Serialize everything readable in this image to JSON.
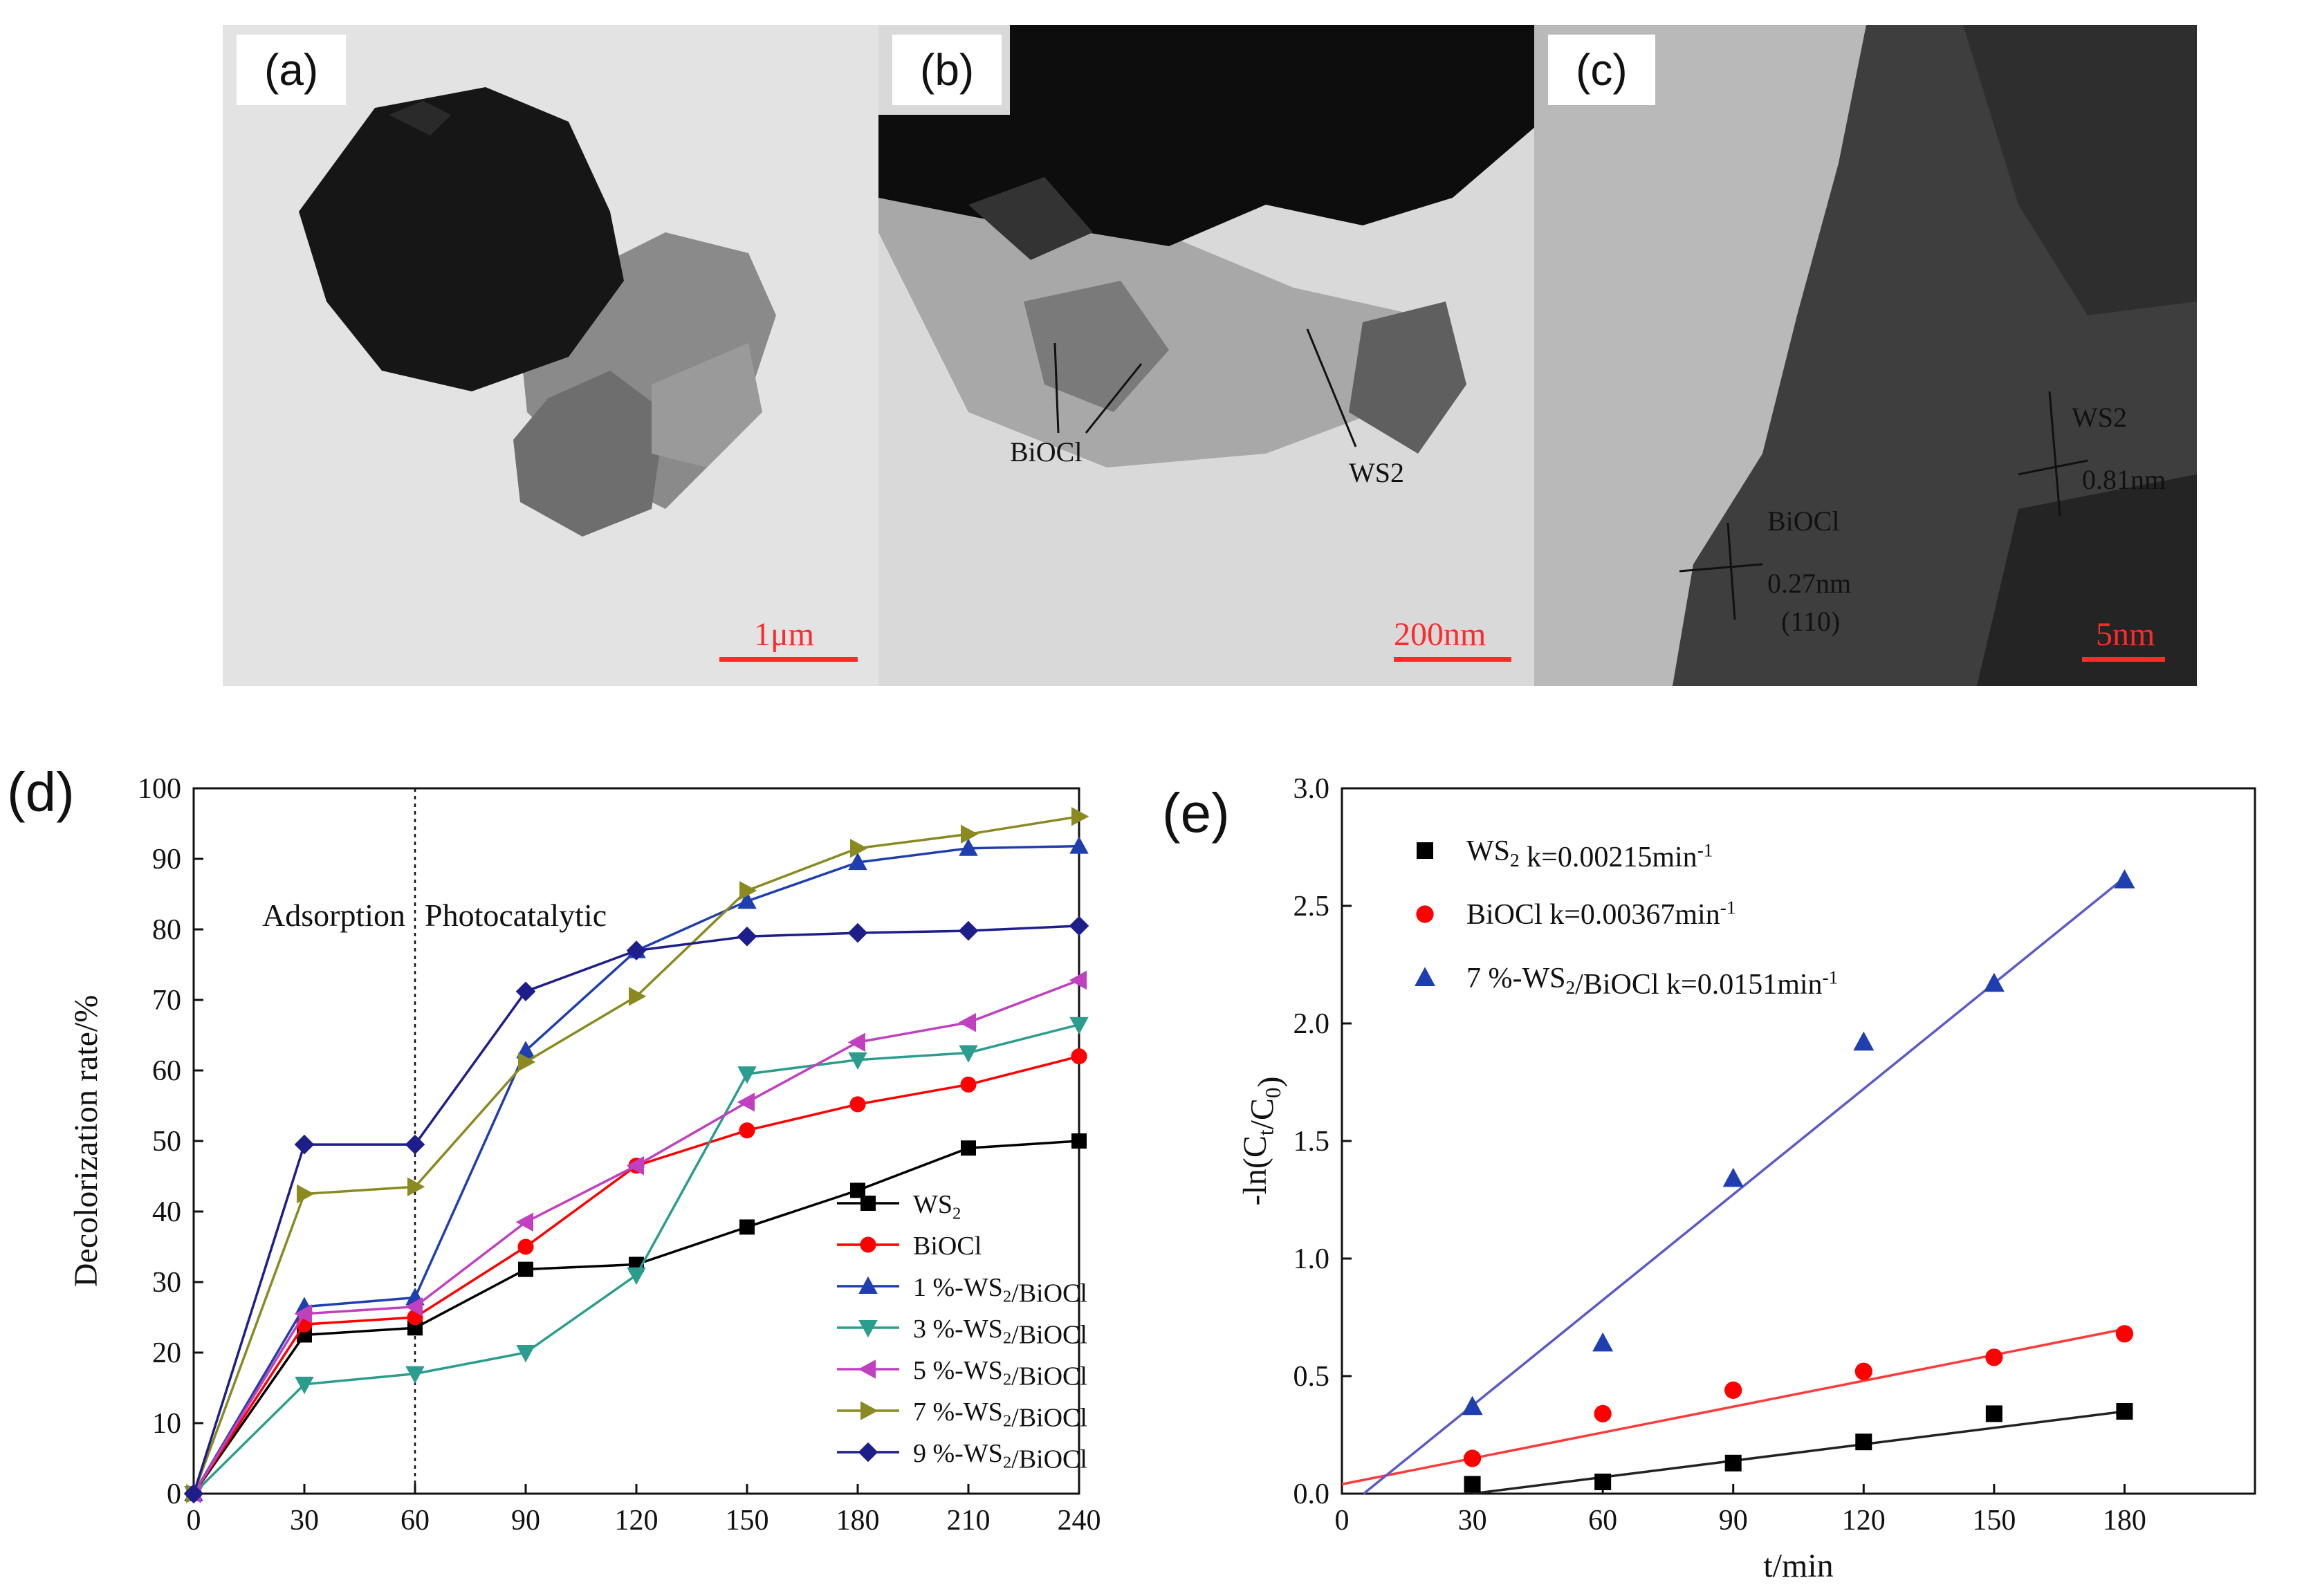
{
  "panels": {
    "a": {
      "label": "(a)",
      "scale": "1μm"
    },
    "b": {
      "label": "(b)",
      "scale": "200nm",
      "annotations": [
        "BiOCl",
        "WS2"
      ]
    },
    "c": {
      "label": "(c)",
      "scale": "5nm",
      "annotations": [
        "BiOCl",
        "0.27nm",
        "(110)",
        "WS2",
        "0.81nm"
      ]
    },
    "d": {
      "label": "(d)"
    },
    "e": {
      "label": "(e)"
    }
  },
  "colors": {
    "WS2": "#000000",
    "BiOCl": "#ff0000",
    "1%": "#1f3fb0",
    "3%": "#2a9d8f",
    "5%": "#c040c0",
    "7%": "#8a8a20",
    "9%": "#1e1e8a",
    "scale_bar": "#ff2a2a"
  },
  "chart_data": [
    {
      "type": "line",
      "xlabel": "",
      "ylabel": "Decolorization rate/%",
      "xlim": [
        0,
        240
      ],
      "ylim": [
        0,
        100
      ],
      "x_ticks": [
        0,
        30,
        60,
        90,
        120,
        150,
        180,
        210,
        240
      ],
      "y_ticks": [
        0,
        10,
        20,
        30,
        40,
        50,
        60,
        70,
        80,
        90,
        100
      ],
      "annotations": [
        "Adsorption",
        "Photocatalytic"
      ],
      "divider_x": 60,
      "legend_position": "bottom-right",
      "x": [
        0,
        30,
        60,
        90,
        120,
        150,
        180,
        210,
        240
      ],
      "series": [
        {
          "name": "WS2",
          "marker": "square",
          "values": [
            0,
            22.5,
            23.5,
            31.8,
            32.5,
            37.8,
            43,
            49,
            50
          ]
        },
        {
          "name": "BiOCl",
          "marker": "circle",
          "values": [
            0,
            24,
            25,
            35,
            46.5,
            51.5,
            55.2,
            58,
            62
          ]
        },
        {
          "name": "1 %-WS2/BiOCl",
          "marker": "triangle-up",
          "values": [
            0,
            26.5,
            27.8,
            62.8,
            77,
            84,
            89.5,
            91.5,
            91.8
          ]
        },
        {
          "name": "3 %-WS2/BiOCl",
          "marker": "triangle-down",
          "values": [
            0,
            15.5,
            17,
            20,
            31,
            59.5,
            61.5,
            62.5,
            66.5
          ]
        },
        {
          "name": "5 %-WS2/BiOCl",
          "marker": "triangle-left",
          "values": [
            0,
            25.5,
            26.5,
            38.5,
            46.5,
            55.5,
            64,
            66.8,
            72.8
          ]
        },
        {
          "name": "7 %-WS2/BiOCl",
          "marker": "triangle-right",
          "values": [
            0,
            42.5,
            43.5,
            61.2,
            70.5,
            85.5,
            91.5,
            93.5,
            96
          ]
        },
        {
          "name": "9 %-WS2/BiOCl",
          "marker": "diamond",
          "values": [
            0,
            49.5,
            49.5,
            71.2,
            77,
            79,
            79.5,
            79.8,
            80.5
          ]
        }
      ]
    },
    {
      "type": "scatter",
      "xlabel": "t/min",
      "ylabel": "-ln(Ct/C0)",
      "xlim": [
        0,
        210
      ],
      "ylim": [
        0,
        3.0
      ],
      "x_ticks": [
        0,
        30,
        60,
        90,
        120,
        150,
        180
      ],
      "y_ticks": [
        "0.0",
        "0.5",
        "1.0",
        "1.5",
        "2.0",
        "2.5",
        "3.0"
      ],
      "legend_position": "top-left",
      "x": [
        30,
        60,
        90,
        120,
        150,
        180
      ],
      "series": [
        {
          "name": "WS2 k=0.00215min-1",
          "marker": "square",
          "values": [
            0.04,
            0.05,
            0.13,
            0.22,
            0.34,
            0.35
          ],
          "fit": [
            [
              30,
              0.0
            ],
            [
              180,
              0.35
            ]
          ]
        },
        {
          "name": "BiOCl k=0.00367min-1",
          "marker": "circle",
          "values": [
            0.15,
            0.34,
            0.44,
            0.52,
            0.58,
            0.68
          ],
          "fit": [
            [
              0,
              0.04
            ],
            [
              180,
              0.7
            ]
          ]
        },
        {
          "name": "7 %-WS2/BiOCl k=0.0151min-1",
          "marker": "triangle-up",
          "values": [
            0.37,
            0.64,
            1.34,
            1.92,
            2.17,
            2.61
          ],
          "fit": [
            [
              5,
              0.0
            ],
            [
              180,
              2.62
            ]
          ]
        }
      ]
    }
  ]
}
